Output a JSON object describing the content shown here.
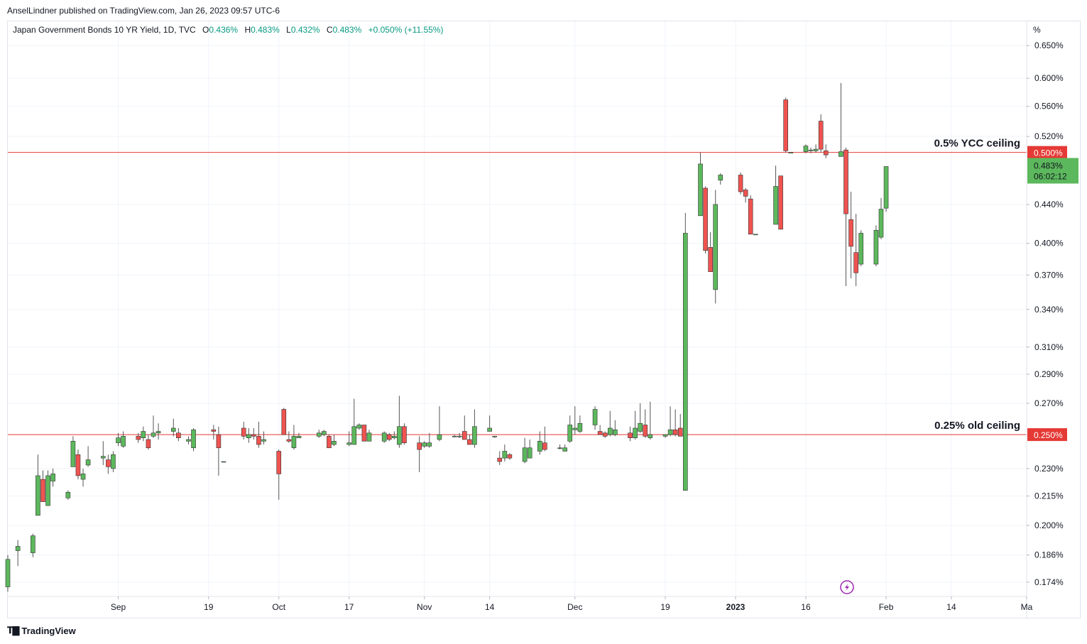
{
  "publisher_line": "AnselLindner published on TradingView.com, Jan 26, 2023 09:57 UTC-6",
  "footer_brand": "TradingView",
  "legend": {
    "symbol": "Japan Government Bonds 10 YR Yield, 1D, TVC",
    "open_label": "O",
    "open": "0.436%",
    "high_label": "H",
    "high": "0.483%",
    "low_label": "L",
    "low": "0.432%",
    "close_label": "C",
    "close": "0.483%",
    "change": "+0.050% (+11.55%)"
  },
  "colors": {
    "up": "#4caf50",
    "up_fill": "#5cb85c",
    "down": "#e53935",
    "down_fill": "#ef5350",
    "wick": "#555555",
    "line_red": "#e53935",
    "grid": "#f0f3fa",
    "legend_value": "#089981",
    "axis_text": "#131722",
    "current_badge": "#5cb85c",
    "ceiling_badge": "#e53935",
    "lightning": "#9c27b0"
  },
  "chart_data": {
    "type": "candlestick",
    "title": "Japan Government Bonds 10 YR Yield, 1D, TVC",
    "y_unit": "%",
    "y_range": [
      0.168,
      0.69
    ],
    "y_scale": "log",
    "y_ticks": [
      "0.650%",
      "0.600%",
      "0.560%",
      "0.520%",
      "0.440%",
      "0.400%",
      "0.370%",
      "0.340%",
      "0.310%",
      "0.290%",
      "0.270%",
      "0.230%",
      "0.215%",
      "0.200%",
      "0.186%",
      "0.174%"
    ],
    "x_ticks": [
      {
        "label": "Sep",
        "date": "2022-09-01"
      },
      {
        "label": "19",
        "date": "2022-09-19"
      },
      {
        "label": "Oct",
        "date": "2022-10-03"
      },
      {
        "label": "17",
        "date": "2022-10-17"
      },
      {
        "label": "Nov",
        "date": "2022-11-01"
      },
      {
        "label": "14",
        "date": "2022-11-14"
      },
      {
        "label": "Dec",
        "date": "2022-12-01"
      },
      {
        "label": "19",
        "date": "2022-12-19"
      },
      {
        "label": "2023",
        "date": "2023-01-02",
        "bold": true
      },
      {
        "label": "16",
        "date": "2023-01-16"
      },
      {
        "label": "Feb",
        "date": "2023-02-01"
      },
      {
        "label": "14",
        "date": "2023-02-14"
      },
      {
        "label": "Ma",
        "date": "2023-03-01"
      }
    ],
    "x_range": [
      "2022-08-10",
      "2023-03-01"
    ],
    "horizontal_lines": [
      {
        "value": 0.5,
        "label": "0.5% YCC ceiling",
        "badge": "0.500%"
      },
      {
        "value": 0.25,
        "label": "0.25% old ceiling",
        "badge": "0.250%"
      }
    ],
    "current_price_badge": {
      "value": 0.483,
      "price": "0.483%",
      "countdown": "06:02:12"
    },
    "candles": [
      {
        "d": "2022-08-10",
        "o": 0.172,
        "h": 0.186,
        "l": 0.17,
        "c": 0.184
      },
      {
        "d": "2022-08-12",
        "o": 0.188,
        "h": 0.193,
        "l": 0.181,
        "c": 0.19
      },
      {
        "d": "2022-08-15",
        "o": 0.187,
        "h": 0.196,
        "l": 0.185,
        "c": 0.195
      },
      {
        "d": "2022-08-16",
        "o": 0.205,
        "h": 0.238,
        "l": 0.205,
        "c": 0.226
      },
      {
        "d": "2022-08-17",
        "o": 0.224,
        "h": 0.229,
        "l": 0.212,
        "c": 0.212
      },
      {
        "d": "2022-08-18",
        "o": 0.21,
        "h": 0.229,
        "l": 0.21,
        "c": 0.226
      },
      {
        "d": "2022-08-19",
        "o": 0.223,
        "h": 0.23,
        "l": 0.22,
        "c": 0.227
      },
      {
        "d": "2022-08-22",
        "o": 0.214,
        "h": 0.218,
        "l": 0.213,
        "c": 0.217
      },
      {
        "d": "2022-08-23",
        "o": 0.231,
        "h": 0.249,
        "l": 0.231,
        "c": 0.246
      },
      {
        "d": "2022-08-24",
        "o": 0.238,
        "h": 0.241,
        "l": 0.224,
        "c": 0.226
      },
      {
        "d": "2022-08-25",
        "o": 0.224,
        "h": 0.23,
        "l": 0.22,
        "c": 0.227
      },
      {
        "d": "2022-08-26",
        "o": 0.232,
        "h": 0.243,
        "l": 0.231,
        "c": 0.235
      },
      {
        "d": "2022-08-29",
        "o": 0.236,
        "h": 0.246,
        "l": 0.232,
        "c": 0.237
      },
      {
        "d": "2022-08-30",
        "o": 0.235,
        "h": 0.238,
        "l": 0.227,
        "c": 0.231
      },
      {
        "d": "2022-08-31",
        "o": 0.23,
        "h": 0.24,
        "l": 0.228,
        "c": 0.238
      },
      {
        "d": "2022-09-01",
        "o": 0.245,
        "h": 0.251,
        "l": 0.243,
        "c": 0.248
      },
      {
        "d": "2022-09-02",
        "o": 0.243,
        "h": 0.252,
        "l": 0.242,
        "c": 0.249
      },
      {
        "d": "2022-09-05",
        "o": 0.249,
        "h": 0.251,
        "l": 0.245,
        "c": 0.247
      },
      {
        "d": "2022-09-06",
        "o": 0.248,
        "h": 0.255,
        "l": 0.246,
        "c": 0.252
      },
      {
        "d": "2022-09-07",
        "o": 0.247,
        "h": 0.25,
        "l": 0.241,
        "c": 0.242
      },
      {
        "d": "2022-09-08",
        "o": 0.249,
        "h": 0.262,
        "l": 0.248,
        "c": 0.251
      },
      {
        "d": "2022-09-09",
        "o": 0.251,
        "h": 0.257,
        "l": 0.247,
        "c": 0.252
      },
      {
        "d": "2022-09-12",
        "o": 0.252,
        "h": 0.26,
        "l": 0.249,
        "c": 0.254
      },
      {
        "d": "2022-09-13",
        "o": 0.251,
        "h": 0.254,
        "l": 0.246,
        "c": 0.248
      },
      {
        "d": "2022-09-15",
        "o": 0.246,
        "h": 0.249,
        "l": 0.244,
        "c": 0.247
      },
      {
        "d": "2022-09-16",
        "o": 0.242,
        "h": 0.254,
        "l": 0.24,
        "c": 0.253
      },
      {
        "d": "2022-09-20",
        "o": 0.253,
        "h": 0.256,
        "l": 0.247,
        "c": 0.252
      },
      {
        "d": "2022-09-21",
        "o": 0.25,
        "h": 0.255,
        "l": 0.226,
        "c": 0.242
      },
      {
        "d": "2022-09-22",
        "o": 0.234,
        "h": 0.234,
        "l": 0.234,
        "c": 0.234
      },
      {
        "d": "2022-09-26",
        "o": 0.254,
        "h": 0.258,
        "l": 0.247,
        "c": 0.249
      },
      {
        "d": "2022-09-27",
        "o": 0.248,
        "h": 0.254,
        "l": 0.245,
        "c": 0.25
      },
      {
        "d": "2022-09-28",
        "o": 0.25,
        "h": 0.254,
        "l": 0.247,
        "c": 0.249
      },
      {
        "d": "2022-09-29",
        "o": 0.249,
        "h": 0.258,
        "l": 0.242,
        "c": 0.244
      },
      {
        "d": "2022-09-30",
        "o": 0.246,
        "h": 0.252,
        "l": 0.244,
        "c": 0.247
      },
      {
        "d": "2022-10-03",
        "o": 0.24,
        "h": 0.241,
        "l": 0.213,
        "c": 0.227
      },
      {
        "d": "2022-10-04",
        "o": 0.266,
        "h": 0.267,
        "l": 0.25,
        "c": 0.25
      },
      {
        "d": "2022-10-05",
        "o": 0.247,
        "h": 0.252,
        "l": 0.245,
        "c": 0.246
      },
      {
        "d": "2022-10-06",
        "o": 0.242,
        "h": 0.256,
        "l": 0.241,
        "c": 0.249
      },
      {
        "d": "2022-10-07",
        "o": 0.248,
        "h": 0.251,
        "l": 0.248,
        "c": 0.249
      },
      {
        "d": "2022-10-11",
        "o": 0.249,
        "h": 0.253,
        "l": 0.248,
        "c": 0.251
      },
      {
        "d": "2022-10-12",
        "o": 0.25,
        "h": 0.253,
        "l": 0.249,
        "c": 0.252
      },
      {
        "d": "2022-10-13",
        "o": 0.249,
        "h": 0.25,
        "l": 0.242,
        "c": 0.242
      },
      {
        "d": "2022-10-14",
        "o": 0.244,
        "h": 0.25,
        "l": 0.243,
        "c": 0.246
      },
      {
        "d": "2022-10-17",
        "o": 0.244,
        "h": 0.252,
        "l": 0.243,
        "c": 0.245
      },
      {
        "d": "2022-10-18",
        "o": 0.244,
        "h": 0.273,
        "l": 0.244,
        "c": 0.255
      },
      {
        "d": "2022-10-19",
        "o": 0.254,
        "h": 0.257,
        "l": 0.253,
        "c": 0.256
      },
      {
        "d": "2022-10-20",
        "o": 0.256,
        "h": 0.256,
        "l": 0.246,
        "c": 0.246
      },
      {
        "d": "2022-10-21",
        "o": 0.246,
        "h": 0.253,
        "l": 0.246,
        "c": 0.251
      },
      {
        "d": "2022-10-24",
        "o": 0.246,
        "h": 0.252,
        "l": 0.245,
        "c": 0.251
      },
      {
        "d": "2022-10-25",
        "o": 0.25,
        "h": 0.251,
        "l": 0.246,
        "c": 0.247
      },
      {
        "d": "2022-10-26",
        "o": 0.248,
        "h": 0.252,
        "l": 0.247,
        "c": 0.249
      },
      {
        "d": "2022-10-27",
        "o": 0.244,
        "h": 0.275,
        "l": 0.242,
        "c": 0.255
      },
      {
        "d": "2022-10-28",
        "o": 0.255,
        "h": 0.257,
        "l": 0.244,
        "c": 0.245
      },
      {
        "d": "2022-10-31",
        "o": 0.245,
        "h": 0.249,
        "l": 0.228,
        "c": 0.241
      },
      {
        "d": "2022-11-01",
        "o": 0.243,
        "h": 0.246,
        "l": 0.242,
        "c": 0.245
      },
      {
        "d": "2022-11-02",
        "o": 0.243,
        "h": 0.251,
        "l": 0.242,
        "c": 0.245
      },
      {
        "d": "2022-11-04",
        "o": 0.247,
        "h": 0.268,
        "l": 0.246,
        "c": 0.25
      },
      {
        "d": "2022-11-07",
        "o": 0.249,
        "h": 0.25,
        "l": 0.249,
        "c": 0.249
      },
      {
        "d": "2022-11-08",
        "o": 0.249,
        "h": 0.251,
        "l": 0.248,
        "c": 0.249
      },
      {
        "d": "2022-11-09",
        "o": 0.252,
        "h": 0.262,
        "l": 0.247,
        "c": 0.247
      },
      {
        "d": "2022-11-10",
        "o": 0.247,
        "h": 0.25,
        "l": 0.244,
        "c": 0.244
      },
      {
        "d": "2022-11-11",
        "o": 0.244,
        "h": 0.266,
        "l": 0.242,
        "c": 0.255
      },
      {
        "d": "2022-11-14",
        "o": 0.252,
        "h": 0.262,
        "l": 0.252,
        "c": 0.254
      },
      {
        "d": "2022-11-15",
        "o": 0.249,
        "h": 0.249,
        "l": 0.248,
        "c": 0.249
      },
      {
        "d": "2022-11-16",
        "o": 0.236,
        "h": 0.24,
        "l": 0.232,
        "c": 0.234
      },
      {
        "d": "2022-11-17",
        "o": 0.236,
        "h": 0.244,
        "l": 0.234,
        "c": 0.24
      },
      {
        "d": "2022-11-18",
        "o": 0.238,
        "h": 0.239,
        "l": 0.235,
        "c": 0.236
      },
      {
        "d": "2022-11-21",
        "o": 0.234,
        "h": 0.248,
        "l": 0.233,
        "c": 0.242
      },
      {
        "d": "2022-11-22",
        "o": 0.236,
        "h": 0.247,
        "l": 0.236,
        "c": 0.242
      },
      {
        "d": "2022-11-24",
        "o": 0.24,
        "h": 0.252,
        "l": 0.238,
        "c": 0.246
      },
      {
        "d": "2022-11-25",
        "o": 0.245,
        "h": 0.255,
        "l": 0.24,
        "c": 0.241
      },
      {
        "d": "2022-11-28",
        "o": 0.242,
        "h": 0.244,
        "l": 0.241,
        "c": 0.242
      },
      {
        "d": "2022-11-29",
        "o": 0.24,
        "h": 0.244,
        "l": 0.24,
        "c": 0.242
      },
      {
        "d": "2022-11-30",
        "o": 0.246,
        "h": 0.262,
        "l": 0.245,
        "c": 0.256
      },
      {
        "d": "2022-12-01",
        "o": 0.253,
        "h": 0.268,
        "l": 0.25,
        "c": 0.254
      },
      {
        "d": "2022-12-02",
        "o": 0.252,
        "h": 0.262,
        "l": 0.251,
        "c": 0.257
      },
      {
        "d": "2022-12-05",
        "o": 0.256,
        "h": 0.268,
        "l": 0.253,
        "c": 0.266
      },
      {
        "d": "2022-12-06",
        "o": 0.252,
        "h": 0.256,
        "l": 0.25,
        "c": 0.25
      },
      {
        "d": "2022-12-07",
        "o": 0.251,
        "h": 0.252,
        "l": 0.248,
        "c": 0.249
      },
      {
        "d": "2022-12-08",
        "o": 0.25,
        "h": 0.265,
        "l": 0.249,
        "c": 0.254
      },
      {
        "d": "2022-12-09",
        "o": 0.25,
        "h": 0.259,
        "l": 0.249,
        "c": 0.253
      },
      {
        "d": "2022-12-12",
        "o": 0.251,
        "h": 0.255,
        "l": 0.246,
        "c": 0.248
      },
      {
        "d": "2022-12-13",
        "o": 0.248,
        "h": 0.265,
        "l": 0.247,
        "c": 0.254
      },
      {
        "d": "2022-12-14",
        "o": 0.252,
        "h": 0.27,
        "l": 0.251,
        "c": 0.257
      },
      {
        "d": "2022-12-15",
        "o": 0.256,
        "h": 0.266,
        "l": 0.248,
        "c": 0.249
      },
      {
        "d": "2022-12-16",
        "o": 0.248,
        "h": 0.271,
        "l": 0.247,
        "c": 0.25
      },
      {
        "d": "2022-12-19",
        "o": 0.249,
        "h": 0.25,
        "l": 0.248,
        "c": 0.25
      },
      {
        "d": "2022-12-20",
        "o": 0.25,
        "h": 0.268,
        "l": 0.249,
        "c": 0.253
      },
      {
        "d": "2022-12-21",
        "o": 0.253,
        "h": 0.266,
        "l": 0.249,
        "c": 0.25
      },
      {
        "d": "2022-12-22",
        "o": 0.254,
        "h": 0.263,
        "l": 0.249,
        "c": 0.249
      },
      {
        "d": "2022-12-23",
        "o": 0.218,
        "h": 0.431,
        "l": 0.218,
        "c": 0.41
      },
      {
        "d": "2022-12-26",
        "o": 0.428,
        "h": 0.5,
        "l": 0.428,
        "c": 0.486
      },
      {
        "d": "2022-12-27",
        "o": 0.458,
        "h": 0.46,
        "l": 0.39,
        "c": 0.393
      },
      {
        "d": "2022-12-28",
        "o": 0.396,
        "h": 0.411,
        "l": 0.373,
        "c": 0.373
      },
      {
        "d": "2022-12-29",
        "o": 0.357,
        "h": 0.456,
        "l": 0.345,
        "c": 0.44
      },
      {
        "d": "2022-12-30",
        "o": 0.467,
        "h": 0.475,
        "l": 0.462,
        "c": 0.473
      },
      {
        "d": "2023-01-03",
        "o": 0.473,
        "h": 0.476,
        "l": 0.451,
        "c": 0.454
      },
      {
        "d": "2023-01-04",
        "o": 0.456,
        "h": 0.458,
        "l": 0.442,
        "c": 0.449
      },
      {
        "d": "2023-01-05",
        "o": 0.446,
        "h": 0.45,
        "l": 0.409,
        "c": 0.409
      },
      {
        "d": "2023-01-06",
        "o": 0.409,
        "h": 0.409,
        "l": 0.409,
        "c": 0.409
      },
      {
        "d": "2023-01-10",
        "o": 0.419,
        "h": 0.484,
        "l": 0.419,
        "c": 0.46
      },
      {
        "d": "2023-01-11",
        "o": 0.472,
        "h": 0.472,
        "l": 0.414,
        "c": 0.414
      },
      {
        "d": "2023-01-12",
        "o": 0.569,
        "h": 0.572,
        "l": 0.5,
        "c": 0.502
      },
      {
        "d": "2023-01-13",
        "o": 0.5,
        "h": 0.5,
        "l": 0.5,
        "c": 0.5
      },
      {
        "d": "2023-01-16",
        "o": 0.501,
        "h": 0.51,
        "l": 0.499,
        "c": 0.508
      },
      {
        "d": "2023-01-17",
        "o": 0.502,
        "h": 0.506,
        "l": 0.499,
        "c": 0.503
      },
      {
        "d": "2023-01-18",
        "o": 0.502,
        "h": 0.51,
        "l": 0.5,
        "c": 0.504
      },
      {
        "d": "2023-01-19",
        "o": 0.54,
        "h": 0.549,
        "l": 0.5,
        "c": 0.504
      },
      {
        "d": "2023-01-20",
        "o": 0.502,
        "h": 0.51,
        "l": 0.493,
        "c": 0.497
      },
      {
        "d": "2023-01-23",
        "o": 0.495,
        "h": 0.593,
        "l": 0.495,
        "c": 0.501
      },
      {
        "d": "2023-01-24",
        "o": 0.503,
        "h": 0.506,
        "l": 0.36,
        "c": 0.43
      },
      {
        "d": "2023-01-25",
        "o": 0.424,
        "h": 0.454,
        "l": 0.367,
        "c": 0.397
      },
      {
        "d": "2023-01-26",
        "o": 0.391,
        "h": 0.43,
        "l": 0.36,
        "c": 0.372
      },
      {
        "d": "2023-01-27",
        "o": 0.38,
        "h": 0.413,
        "l": 0.378,
        "c": 0.41
      },
      {
        "d": "2023-01-30",
        "o": 0.38,
        "h": 0.418,
        "l": 0.378,
        "c": 0.413
      },
      {
        "d": "2023-01-31",
        "o": 0.406,
        "h": 0.447,
        "l": 0.404,
        "c": 0.435
      },
      {
        "d": "2023-02-01",
        "o": 0.436,
        "h": 0.483,
        "l": 0.432,
        "c": 0.483
      }
    ]
  }
}
